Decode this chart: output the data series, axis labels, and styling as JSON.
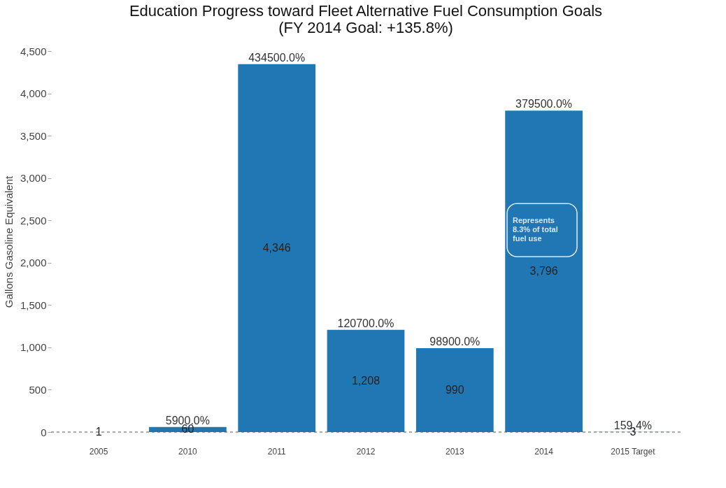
{
  "chart_data": {
    "type": "bar",
    "title": "Education Progress toward Fleet Alternative Fuel Consumption Goals",
    "subtitle": "(FY 2014 Goal: +135.8%)",
    "ylabel": "Gallons Gasoline Equivalent",
    "categories": [
      "2005",
      "2010",
      "2011",
      "2012",
      "2013",
      "2014",
      "2015 Target"
    ],
    "values": [
      1,
      60,
      4346,
      1208,
      990,
      3796,
      3
    ],
    "value_labels": [
      "1",
      "60",
      "4,346",
      "1,208",
      "990",
      "3,796",
      "3"
    ],
    "color": "#2077b4",
    "ylim": [
      0,
      4500
    ],
    "yticks": [
      0,
      {
        "value": 500,
        "label": "500"
      },
      {
        "value": 1000,
        "label": "1,000"
      },
      {
        "value": 1500,
        "label": "1,500"
      },
      {
        "value": 2000,
        "label": "2,000"
      },
      {
        "value": 2500,
        "label": "2,500"
      },
      {
        "value": 3000,
        "label": "3,000"
      },
      {
        "value": 3500,
        "label": "3,500"
      },
      {
        "value": 4000,
        "label": "4,000"
      },
      {
        "value": 4500,
        "label": "4,500"
      }
    ],
    "grid": false,
    "ref_lines": [
      {
        "axis": "y",
        "value": 0,
        "color": "#555555",
        "line_style": "dashed"
      }
    ],
    "annotations": [
      {
        "text": "5900.0%",
        "x": "2010",
        "y": 60
      },
      {
        "text": "434500.0%",
        "x": "2011",
        "y": 4346
      },
      {
        "text": "120700.0%",
        "x": "2012",
        "y": 1208
      },
      {
        "text": "98900.0%",
        "x": "2013",
        "y": 990
      },
      {
        "text": "379500.0%",
        "x": "2014",
        "y": 3796
      },
      {
        "text": "159.4%",
        "x": "2015 Target",
        "y": 3
      },
      "Represents 8.3% of total fuel use"
    ]
  }
}
